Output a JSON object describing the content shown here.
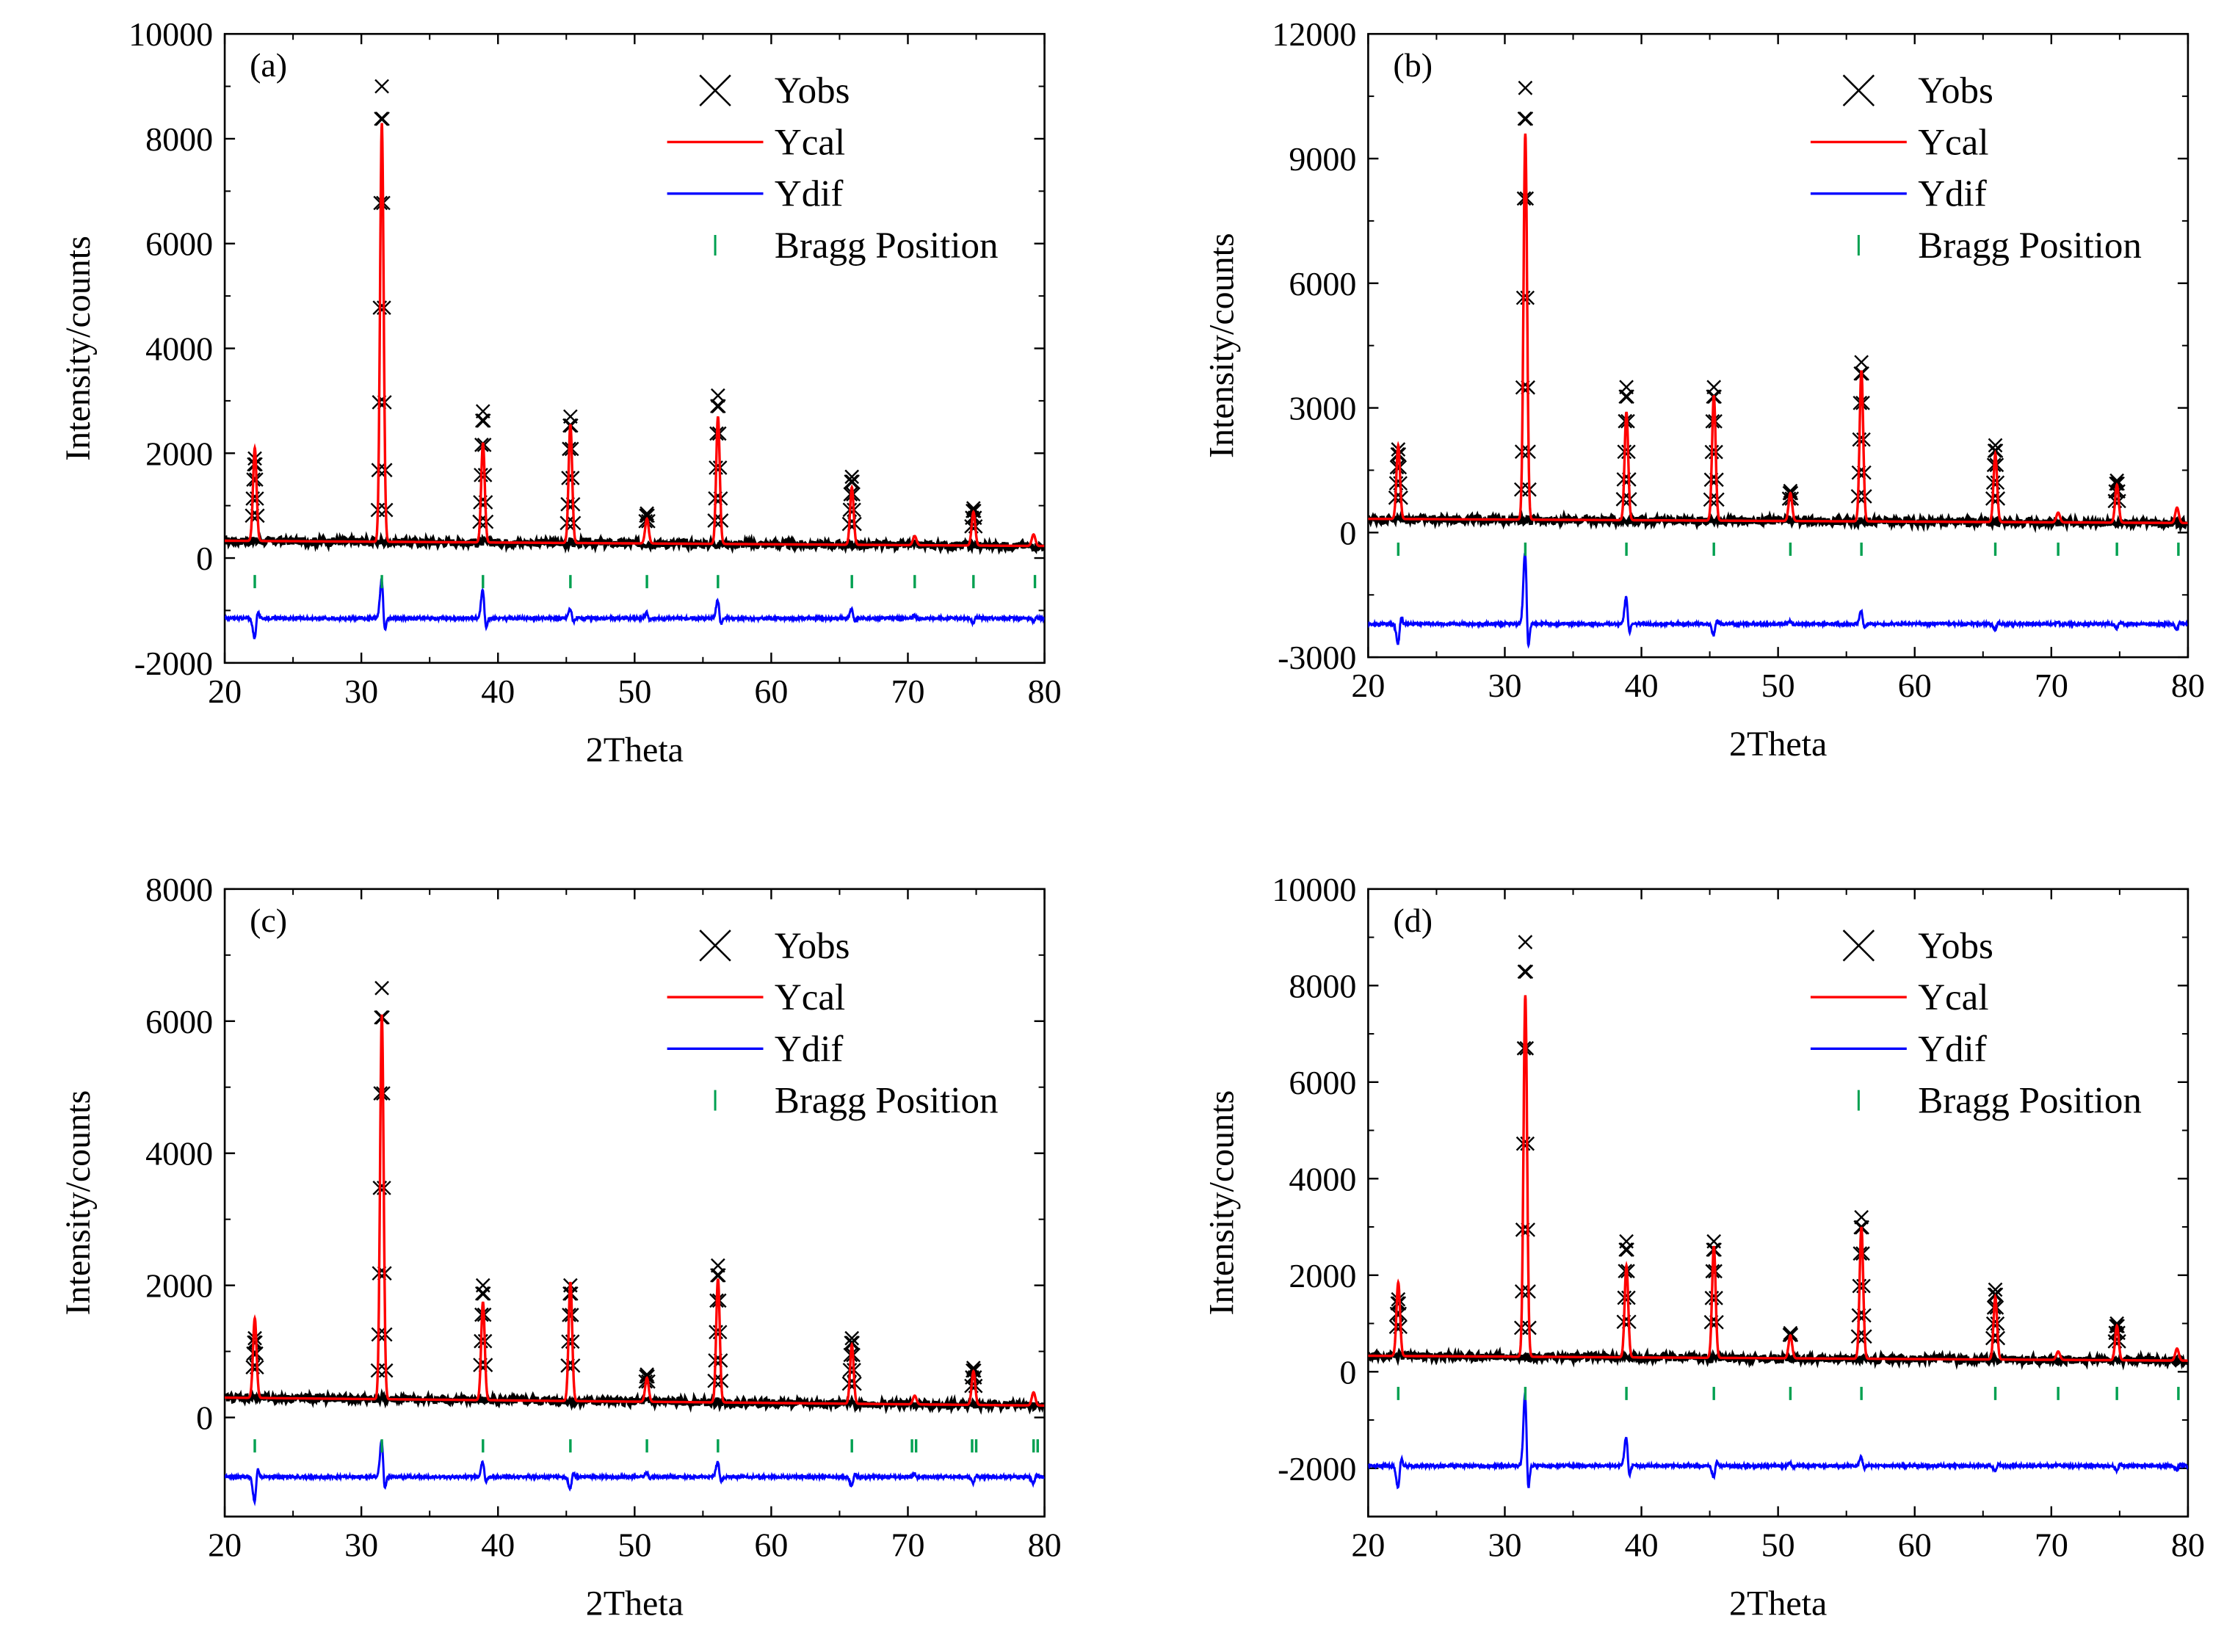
{
  "chart_data": [
    {
      "type": "line",
      "panel_label": "(a)",
      "xlabel": "2Theta",
      "ylabel": "Intensity/counts",
      "xlim": [
        20,
        80
      ],
      "ylim": [
        -2000,
        10000
      ],
      "x_ticks": [
        20,
        30,
        40,
        50,
        60,
        70,
        80
      ],
      "y_ticks": [
        -2000,
        0,
        2000,
        4000,
        6000,
        8000,
        10000
      ],
      "background": {
        "start": 330,
        "end": 230
      },
      "difference_offset": -1150,
      "bragg_level": -450,
      "peaks": [
        {
          "x": 22.2,
          "obs": 1900,
          "cal": 2100,
          "dif": -420
        },
        {
          "x": 31.5,
          "obs": 9000,
          "cal": 8300,
          "dif": 800
        },
        {
          "x": 38.9,
          "obs": 2800,
          "cal": 2200,
          "dif": 600
        },
        {
          "x": 45.3,
          "obs": 2700,
          "cal": 2550,
          "dif": 200
        },
        {
          "x": 50.9,
          "obs": 850,
          "cal": 750,
          "dif": 120
        },
        {
          "x": 56.1,
          "obs": 3100,
          "cal": 2700,
          "dif": 380
        },
        {
          "x": 65.9,
          "obs": 1550,
          "cal": 1350,
          "dif": 200
        },
        {
          "x": 70.5,
          "obs": 450,
          "cal": 420,
          "dif": 60
        },
        {
          "x": 74.8,
          "obs": 950,
          "cal": 880,
          "dif": -90
        },
        {
          "x": 79.2,
          "obs": 480,
          "cal": 450,
          "dif": -60
        }
      ],
      "bragg_positions": [
        22.2,
        31.5,
        38.9,
        45.3,
        50.9,
        56.1,
        65.9,
        70.5,
        74.8,
        79.3
      ],
      "series": [
        {
          "name": "Yobs",
          "color": "#000000",
          "marker": "x"
        },
        {
          "name": "Ycal",
          "color": "#ff0000"
        },
        {
          "name": "Ydif",
          "color": "#0000ff"
        },
        {
          "name": "Bragg Position",
          "color": "#00a050",
          "marker": "tick"
        }
      ],
      "legend_position": "top-right"
    },
    {
      "type": "line",
      "panel_label": "(b)",
      "xlabel": "2Theta",
      "ylabel": "Intensity/counts",
      "xlim": [
        20,
        80
      ],
      "ylim": [
        -3000,
        12000
      ],
      "x_ticks": [
        20,
        30,
        40,
        50,
        60,
        70,
        80
      ],
      "y_ticks": [
        -3000,
        0,
        3000,
        6000,
        9000,
        12000
      ],
      "background": {
        "start": 330,
        "end": 230
      },
      "difference_offset": -2200,
      "bragg_level": -400,
      "peaks": [
        {
          "x": 22.2,
          "obs": 2000,
          "cal": 2100,
          "dif": -520
        },
        {
          "x": 31.5,
          "obs": 10700,
          "cal": 9600,
          "dif": 1900
        },
        {
          "x": 38.9,
          "obs": 3500,
          "cal": 2900,
          "dif": 700
        },
        {
          "x": 45.3,
          "obs": 3500,
          "cal": 3300,
          "dif": -300
        },
        {
          "x": 50.9,
          "obs": 1000,
          "cal": 950,
          "dif": 80
        },
        {
          "x": 56.1,
          "obs": 4100,
          "cal": 3900,
          "dif": 350
        },
        {
          "x": 65.9,
          "obs": 2100,
          "cal": 1900,
          "dif": -150
        },
        {
          "x": 70.5,
          "obs": 500,
          "cal": 480,
          "dif": 60
        },
        {
          "x": 74.8,
          "obs": 1250,
          "cal": 1150,
          "dif": -120
        },
        {
          "x": 79.2,
          "obs": 650,
          "cal": 600,
          "dif": -150
        }
      ],
      "bragg_positions": [
        22.2,
        31.5,
        38.9,
        45.3,
        50.9,
        56.1,
        65.9,
        70.5,
        74.8,
        79.3
      ],
      "series": [
        {
          "name": "Yobs",
          "color": "#000000",
          "marker": "x"
        },
        {
          "name": "Ycal",
          "color": "#ff0000"
        },
        {
          "name": "Ydif",
          "color": "#0000ff"
        },
        {
          "name": "Bragg Position",
          "color": "#00a050",
          "marker": "tick"
        }
      ],
      "legend_position": "top-right"
    },
    {
      "type": "line",
      "panel_label": "(c)",
      "xlabel": "2Theta",
      "ylabel": "Intensity/counts",
      "xlim": [
        20,
        80
      ],
      "ylim": [
        -1500,
        8000
      ],
      "x_ticks": [
        20,
        30,
        40,
        50,
        60,
        70,
        80
      ],
      "y_ticks": [
        0,
        2000,
        4000,
        6000,
        8000
      ],
      "background": {
        "start": 300,
        "end": 180
      },
      "difference_offset": -900,
      "bragg_level": -430,
      "peaks": [
        {
          "x": 22.2,
          "obs": 1200,
          "cal": 1500,
          "dif": -400
        },
        {
          "x": 31.5,
          "obs": 6500,
          "cal": 6100,
          "dif": 600
        },
        {
          "x": 38.9,
          "obs": 2000,
          "cal": 1750,
          "dif": 250
        },
        {
          "x": 45.3,
          "obs": 2000,
          "cal": 2050,
          "dif": -200
        },
        {
          "x": 50.9,
          "obs": 650,
          "cal": 600,
          "dif": 80
        },
        {
          "x": 56.1,
          "obs": 2300,
          "cal": 2100,
          "dif": 250
        },
        {
          "x": 65.9,
          "obs": 1200,
          "cal": 1100,
          "dif": -150
        },
        {
          "x": 70.5,
          "obs": 350,
          "cal": 330,
          "dif": 50
        },
        {
          "x": 74.8,
          "obs": 750,
          "cal": 700,
          "dif": -100
        },
        {
          "x": 79.2,
          "obs": 400,
          "cal": 380,
          "dif": -100
        }
      ],
      "bragg_positions": [
        22.2,
        31.5,
        38.9,
        45.3,
        50.9,
        56.1,
        65.9,
        70.3,
        70.6,
        74.7,
        75.0,
        79.2,
        79.5
      ],
      "series": [
        {
          "name": "Yobs",
          "color": "#000000",
          "marker": "x"
        },
        {
          "name": "Ycal",
          "color": "#ff0000"
        },
        {
          "name": "Ydif",
          "color": "#0000ff"
        },
        {
          "name": "Bragg Position",
          "color": "#00a050",
          "marker": "tick"
        }
      ],
      "legend_position": "top-right"
    },
    {
      "type": "line",
      "panel_label": "(d)",
      "xlabel": "2Theta",
      "ylabel": "Intensity/counts",
      "xlim": [
        20,
        80
      ],
      "ylim": [
        -3000,
        10000
      ],
      "x_ticks": [
        20,
        30,
        40,
        50,
        60,
        70,
        80
      ],
      "y_ticks": [
        -2000,
        0,
        2000,
        4000,
        6000,
        8000,
        10000
      ],
      "background": {
        "start": 330,
        "end": 230
      },
      "difference_offset": -1950,
      "bragg_level": -450,
      "peaks": [
        {
          "x": 22.2,
          "obs": 1500,
          "cal": 1850,
          "dif": -500
        },
        {
          "x": 31.5,
          "obs": 8900,
          "cal": 7800,
          "dif": 1600
        },
        {
          "x": 38.9,
          "obs": 2700,
          "cal": 2200,
          "dif": 650
        },
        {
          "x": 45.3,
          "obs": 2700,
          "cal": 2600,
          "dif": -250
        },
        {
          "x": 50.9,
          "obs": 800,
          "cal": 750,
          "dif": 60
        },
        {
          "x": 56.1,
          "obs": 3200,
          "cal": 3000,
          "dif": 200
        },
        {
          "x": 65.9,
          "obs": 1700,
          "cal": 1550,
          "dif": -100
        },
        {
          "x": 70.5,
          "obs": 450,
          "cal": 420,
          "dif": 40
        },
        {
          "x": 74.8,
          "obs": 1000,
          "cal": 950,
          "dif": -100
        },
        {
          "x": 79.2,
          "obs": 500,
          "cal": 480,
          "dif": -80
        }
      ],
      "bragg_positions": [
        22.2,
        31.5,
        38.9,
        45.3,
        50.9,
        56.1,
        65.9,
        70.5,
        74.8,
        79.3
      ],
      "series": [
        {
          "name": "Yobs",
          "color": "#000000",
          "marker": "x"
        },
        {
          "name": "Ycal",
          "color": "#ff0000"
        },
        {
          "name": "Ydif",
          "color": "#0000ff"
        },
        {
          "name": "Bragg Position",
          "color": "#00a050",
          "marker": "tick"
        }
      ],
      "legend_position": "top-right"
    }
  ]
}
